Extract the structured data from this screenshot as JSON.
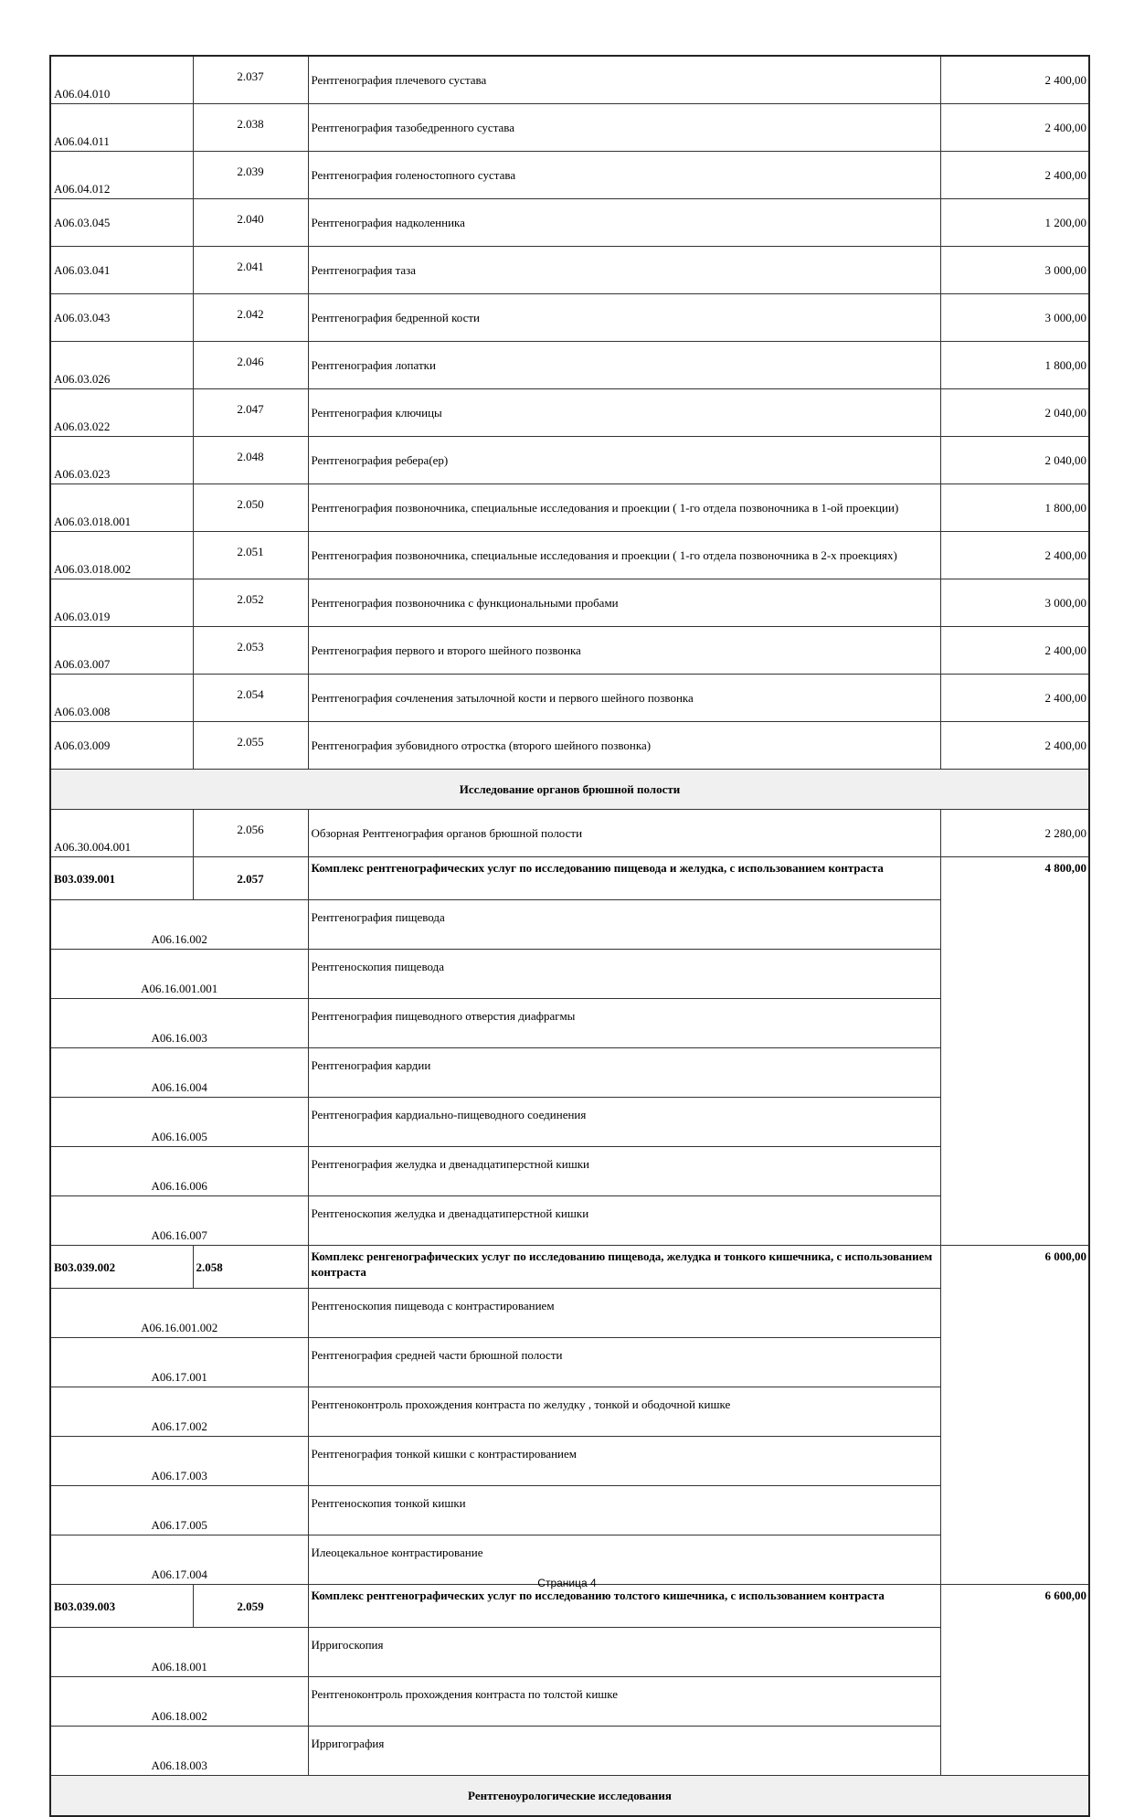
{
  "rows": [
    {
      "code": "A06.04.010",
      "num": "2.037",
      "desc": "Рентгенография плечевого сустава",
      "price": "2 400,00",
      "valign": "bottom"
    },
    {
      "code": "A06.04.011",
      "num": "2.038",
      "desc": "Рентгенография тазобедренного сустава",
      "price": "2 400,00",
      "valign": "bottom"
    },
    {
      "code": "A06.04.012",
      "num": "2.039",
      "desc": "Рентгенография голеностопного  сустава",
      "price": "2 400,00",
      "valign": "bottom"
    },
    {
      "code": "A06.03.045",
      "num": "2.040",
      "desc": "Рентгенография надколенника",
      "price": "1 200,00",
      "valign": "middle"
    },
    {
      "code": "A06.03.041",
      "num": "2.041",
      "desc": "Рентгенография таза",
      "price": "3 000,00",
      "valign": "middle"
    },
    {
      "code": "A06.03.043",
      "num": "2.042",
      "desc": "Рентгенография бедренной кости",
      "price": "3 000,00",
      "valign": "middle"
    },
    {
      "code": "A06.03.026",
      "num": "2.046",
      "desc": "Рентгенография лопатки",
      "price": "1 800,00",
      "valign": "bottom"
    },
    {
      "code": "A06.03.022",
      "num": "2.047",
      "desc": "Рентгенография ключицы",
      "price": "2 040,00",
      "valign": "bottom"
    },
    {
      "code": "A06.03.023",
      "num": "2.048",
      "desc": "Рентгенография ребера(ер)",
      "price": "2 040,00",
      "valign": "bottom"
    },
    {
      "code": "A06.03.018.001",
      "num": "2.050",
      "desc": "Рентгенография позвоночника, специальные исследования и проекции ( 1-го отдела позвоночника в 1-ой проекции)",
      "price": "1 800,00",
      "valign": "bottom"
    },
    {
      "code": "A06.03.018.002",
      "num": "2.051",
      "desc": "Рентгенография позвоночника, специальные исследования и проекции ( 1-го отдела позвоночника в 2-х проекциях)",
      "price": "2 400,00",
      "valign": "bottom"
    },
    {
      "code": "A06.03.019",
      "num": "2.052",
      "desc": "Рентгенография позвоночника с функциональными пробами",
      "price": "3 000,00",
      "valign": "bottom"
    },
    {
      "code": "A06.03.007",
      "num": "2.053",
      "desc": "Рентгенография первого и второго шейного позвонка",
      "price": "2 400,00",
      "valign": "bottom"
    },
    {
      "code": "A06.03.008",
      "num": "2.054",
      "desc": "Рентгенография сочленения затылочной кости и первого шейного позвонка",
      "price": "2 400,00",
      "valign": "bottom"
    },
    {
      "code": "A06.03.009",
      "num": "2.055",
      "desc": "Рентгенография зубовидного отростка (второго шейного позвонка)",
      "price": "2 400,00",
      "valign": "middle"
    }
  ],
  "section_abdominal": "Исследование органов брюшной  полости",
  "row_2056": {
    "code": "A06.30.004.001",
    "num": "2.056",
    "desc": "Обзорная Рентгенография органов брюшной полости",
    "price": "2 280,00"
  },
  "complexes": [
    {
      "code": "B03.039.001",
      "num": "2.057",
      "desc": "Комплекс рентгенографических услуг по исследованию пищевода и желудка, с использованием контраста",
      "price": "4 800,00",
      "items": [
        {
          "code": "A06.16.002",
          "desc": "Рентгенография пищевода"
        },
        {
          "code": "A06.16.001.001",
          "desc": "Рентгеноскопия пищевода"
        },
        {
          "code": "A06.16.003",
          "desc": "Рентгенография пищеводного отверстия диафрагмы"
        },
        {
          "code": "A06.16.004",
          "desc": "Рентгенография кардии"
        },
        {
          "code": "A06.16.005",
          "desc": "Рентгенография кардиально-пищеводного соединения"
        },
        {
          "code": "A06.16.006",
          "desc": "Рентгенография желудка и двенадцатиперстной кишки"
        },
        {
          "code": "A06.16.007",
          "desc": "Рентгеноскопия желудка и двенадцатиперстной кишки"
        }
      ]
    },
    {
      "code": "B03.039.002",
      "num": "2.058",
      "desc": "Комплекс ренгенографических услуг по исследованию пищевода, желудка и тонкого кишечника, с использованием контраста",
      "price": "6 000,00",
      "items": [
        {
          "code": "A06.16.001.002",
          "desc": "Рентгеноскопия пищевода с контрастированием"
        },
        {
          "code": "A06.17.001",
          "desc": "Рентгенография средней части брюшной полости"
        },
        {
          "code": "A06.17.002",
          "desc": "Рентгеноконтроль прохождения контраста по желудку , тонкой и ободочной кишке"
        },
        {
          "code": "A06.17.003",
          "desc": "Рентгенография тонкой кишки с контрастированием"
        },
        {
          "code": "A06.17.005",
          "desc": "Рентгеноскопия тонкой кишки"
        },
        {
          "code": "A06.17.004",
          "desc": "Илеоцекальное контрастирование"
        }
      ]
    },
    {
      "code": "B03.039.003",
      "num": "2.059",
      "desc": "Комплекс рентгенографических услуг по исследованию толстого кишечника, с использованием контраста",
      "price": "6 600,00",
      "items": [
        {
          "code": "A06.18.001",
          "desc": "Ирригоскопия"
        },
        {
          "code": "A06.18.002",
          "desc": "Рентгеноконтроль прохождения контраста по толстой кишке"
        },
        {
          "code": "A06.18.003",
          "desc": "Ирригография"
        }
      ]
    }
  ],
  "section_urology": "Рентгеноурологические исследования",
  "footer": {
    "page_label": "Страница 4"
  }
}
